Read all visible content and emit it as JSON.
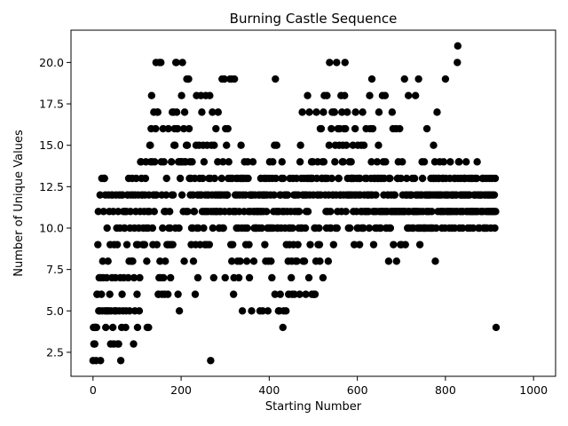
{
  "chart_data": {
    "type": "scatter",
    "title": "Burning Castle Sequence",
    "xlabel": "Starting Number",
    "ylabel": "Number of Unique Values",
    "xlim": [
      -50,
      1050
    ],
    "ylim": [
      1.05,
      21.95
    ],
    "xticks": [
      0,
      200,
      400,
      600,
      800,
      1000
    ],
    "yticks": [
      2.5,
      5.0,
      7.5,
      10.0,
      12.5,
      15.0,
      17.5,
      20.0
    ],
    "ytick_labels": [
      "2.5",
      "5.0",
      "7.5",
      "10.0",
      "12.5",
      "15.0",
      "17.5",
      "20.0"
    ],
    "grid": false,
    "legend": "none",
    "marker_color": "#000000",
    "x_start": 0,
    "values": [
      2,
      4,
      3,
      4,
      3,
      4,
      4,
      2,
      4,
      6,
      6,
      9,
      11,
      5,
      7,
      5,
      12,
      2,
      7,
      6,
      13,
      5,
      8,
      7,
      11,
      13,
      13,
      5,
      12,
      4,
      5,
      7,
      10,
      5,
      8,
      12,
      5,
      11,
      6,
      9,
      3,
      5,
      12,
      7,
      12,
      4,
      11,
      3,
      9,
      5,
      5,
      7,
      12,
      5,
      10,
      9,
      3,
      11,
      3,
      12,
      5,
      10,
      7,
      2,
      12,
      4,
      6,
      12,
      5,
      11,
      7,
      10,
      10,
      11,
      4,
      5,
      11,
      9,
      12,
      12,
      7,
      13,
      8,
      5,
      10,
      11,
      12,
      8,
      8,
      13,
      8,
      12,
      3,
      7,
      10,
      5,
      12,
      11,
      13,
      9,
      6,
      4,
      9,
      12,
      10,
      5,
      7,
      11,
      14,
      14,
      13,
      12,
      12,
      9,
      10,
      9,
      11,
      9,
      12,
      13,
      14,
      10,
      8,
      4,
      11,
      10,
      4,
      12,
      11,
      15,
      15,
      14,
      16,
      18,
      14,
      10,
      9,
      12,
      17,
      11,
      14,
      12,
      16,
      20,
      12,
      9,
      17,
      17,
      6,
      6,
      7,
      20,
      8,
      7,
      20,
      14,
      12,
      6,
      10,
      16,
      7,
      14,
      11,
      6,
      8,
      11,
      12,
      13,
      9,
      9,
      6,
      16,
      10,
      9,
      11,
      10,
      7,
      9,
      14,
      12,
      17,
      9,
      12,
      17,
      15,
      16,
      15,
      10,
      20,
      20,
      17,
      16,
      16,
      6,
      14,
      10,
      5,
      14,
      13,
      14,
      14,
      18,
      12,
      20,
      14,
      11,
      16,
      8,
      17,
      14,
      14,
      11,
      15,
      19,
      15,
      11,
      19,
      19,
      16,
      13,
      14,
      12,
      13,
      9,
      10,
      14,
      10,
      12,
      8,
      11,
      11,
      13,
      6,
      9,
      15,
      18,
      10,
      12,
      7,
      10,
      12,
      15,
      13,
      9,
      12,
      18,
      12,
      17,
      11,
      13,
      15,
      10,
      14,
      11,
      9,
      12,
      18,
      11,
      9,
      15,
      12,
      11,
      12,
      13,
      9,
      18,
      13,
      2,
      11,
      15,
      12,
      17,
      10,
      11,
      7,
      15,
      13,
      12,
      11,
      16,
      11,
      12,
      11,
      14,
      17,
      12,
      10,
      10,
      11,
      12,
      11,
      12,
      13,
      19,
      10,
      14,
      10,
      12,
      19,
      11,
      7,
      16,
      12,
      15,
      12,
      12,
      16,
      13,
      14,
      11,
      11,
      19,
      13,
      9,
      19,
      8,
      13,
      9,
      11,
      6,
      7,
      19,
      11,
      12,
      11,
      13,
      10,
      12,
      8,
      13,
      10,
      7,
      11,
      12,
      8,
      13,
      15,
      13,
      10,
      5,
      12,
      13,
      13,
      11,
      14,
      10,
      12,
      9,
      13,
      8,
      10,
      14,
      13,
      11,
      9,
      7,
      12,
      11,
      12,
      12,
      5,
      12,
      12,
      14,
      11,
      8,
      10,
      11,
      12,
      10,
      10,
      10,
      11,
      11,
      11,
      11,
      12,
      10,
      12,
      5,
      11,
      13,
      11,
      10,
      12,
      5,
      12,
      11,
      12,
      13,
      9,
      12,
      8,
      13,
      11,
      12,
      10,
      5,
      8,
      10,
      13,
      14,
      10,
      12,
      8,
      10,
      7,
      13,
      14,
      10,
      11,
      12,
      15,
      6,
      19,
      13,
      11,
      15,
      10,
      11,
      10,
      5,
      11,
      5,
      12,
      6,
      12,
      10,
      13,
      14,
      11,
      4,
      13,
      5,
      11,
      12,
      10,
      12,
      5,
      9,
      12,
      11,
      12,
      8,
      6,
      10,
      9,
      13,
      10,
      11,
      7,
      8,
      6,
      10,
      13,
      9,
      12,
      6,
      11,
      12,
      8,
      12,
      13,
      8,
      11,
      9,
      12,
      10,
      11,
      6,
      14,
      15,
      10,
      13,
      10,
      17,
      12,
      8,
      12,
      13,
      8,
      12,
      10,
      6,
      11,
      12,
      13,
      18,
      11,
      13,
      7,
      17,
      12,
      9,
      13,
      13,
      14,
      6,
      13,
      14,
      12,
      6,
      6,
      10,
      6,
      10,
      8,
      17,
      13,
      12,
      14,
      9,
      12,
      10,
      9,
      8,
      16,
      12,
      16,
      13,
      13,
      14,
      7,
      17,
      14,
      18,
      13,
      12,
      13,
      11,
      10,
      18,
      13,
      11,
      8,
      12,
      15,
      20,
      10,
      11,
      10,
      16,
      13,
      17,
      12,
      12,
      9,
      17,
      17,
      14,
      15,
      10,
      12,
      20,
      10,
      11,
      16,
      13,
      13,
      15,
      16,
      12,
      12,
      18,
      11,
      17,
      14,
      15,
      14,
      12,
      16,
      18,
      20,
      16,
      11,
      15,
      12,
      17,
      13,
      12,
      10,
      12,
      14,
      10,
      12,
      13,
      14,
      13,
      12,
      13,
      15,
      11,
      13,
      9,
      12,
      16,
      17,
      12,
      11,
      13,
      10,
      15,
      10,
      12,
      13,
      9,
      13,
      12,
      11,
      15,
      10,
      11,
      17,
      10,
      10,
      15,
      12,
      11,
      13,
      11,
      16,
      13,
      11,
      12,
      12,
      12,
      11,
      10,
      18,
      16,
      12,
      13,
      14,
      19,
      12,
      16,
      11,
      9,
      13,
      11,
      13,
      10,
      12,
      11,
      10,
      14,
      13,
      13,
      15,
      17,
      11,
      10,
      13,
      10,
      11,
      11,
      13,
      18,
      11,
      14,
      12,
      13,
      11,
      18,
      14,
      10,
      11,
      10,
      11,
      12,
      12,
      8,
      13,
      10,
      13,
      10,
      11,
      12,
      11,
      17,
      11,
      16,
      9,
      12,
      11,
      12,
      11,
      11,
      16,
      8,
      11,
      13,
      13,
      14,
      11,
      11,
      16,
      11,
      9,
      13,
      9,
      11,
      14,
      12,
      11,
      11,
      11,
      19,
      11,
      9,
      12,
      12,
      13,
      12,
      10,
      11,
      18,
      10,
      11,
      12,
      12,
      12,
      12,
      12,
      10,
      13,
      11,
      10,
      11,
      11,
      13,
      11,
      18,
      12,
      11,
      11,
      12,
      10,
      11,
      19,
      12,
      10,
      9,
      11,
      10,
      12,
      12,
      14,
      13,
      11,
      10,
      10,
      14,
      10,
      12,
      10,
      12,
      11,
      16,
      12,
      11,
      10,
      12,
      11,
      12,
      12,
      10,
      13,
      10,
      11,
      12,
      10,
      13,
      15,
      13,
      12,
      14,
      8,
      13,
      10,
      12,
      17,
      12,
      11,
      13,
      13,
      12,
      14,
      12,
      11,
      11,
      12,
      10,
      13,
      11,
      13,
      14,
      11,
      12,
      10,
      19,
      13,
      12,
      11,
      12,
      11,
      12,
      11,
      11,
      10,
      13,
      14,
      11,
      12,
      11,
      10,
      12,
      12,
      12,
      11,
      13,
      10,
      13,
      12,
      11,
      12,
      11,
      20,
      21,
      13,
      14,
      14,
      10,
      11,
      12,
      13,
      12,
      11,
      12,
      10,
      11,
      12,
      13,
      13,
      12,
      13,
      12,
      14,
      11,
      11,
      12,
      10,
      12,
      13,
      11,
      12,
      10,
      11,
      13,
      11,
      11,
      13,
      11,
      10,
      11,
      12,
      12,
      13,
      11,
      12,
      11,
      13,
      14,
      11,
      12,
      10,
      12,
      10,
      12,
      12,
      11,
      12,
      12,
      11,
      13,
      11,
      13,
      10,
      10,
      12,
      12,
      10,
      11,
      13,
      10,
      12,
      11,
      12,
      11,
      12,
      13,
      11,
      12,
      10,
      11,
      12,
      13,
      11,
      12,
      11,
      11,
      12,
      10,
      13,
      11,
      4
    ]
  }
}
